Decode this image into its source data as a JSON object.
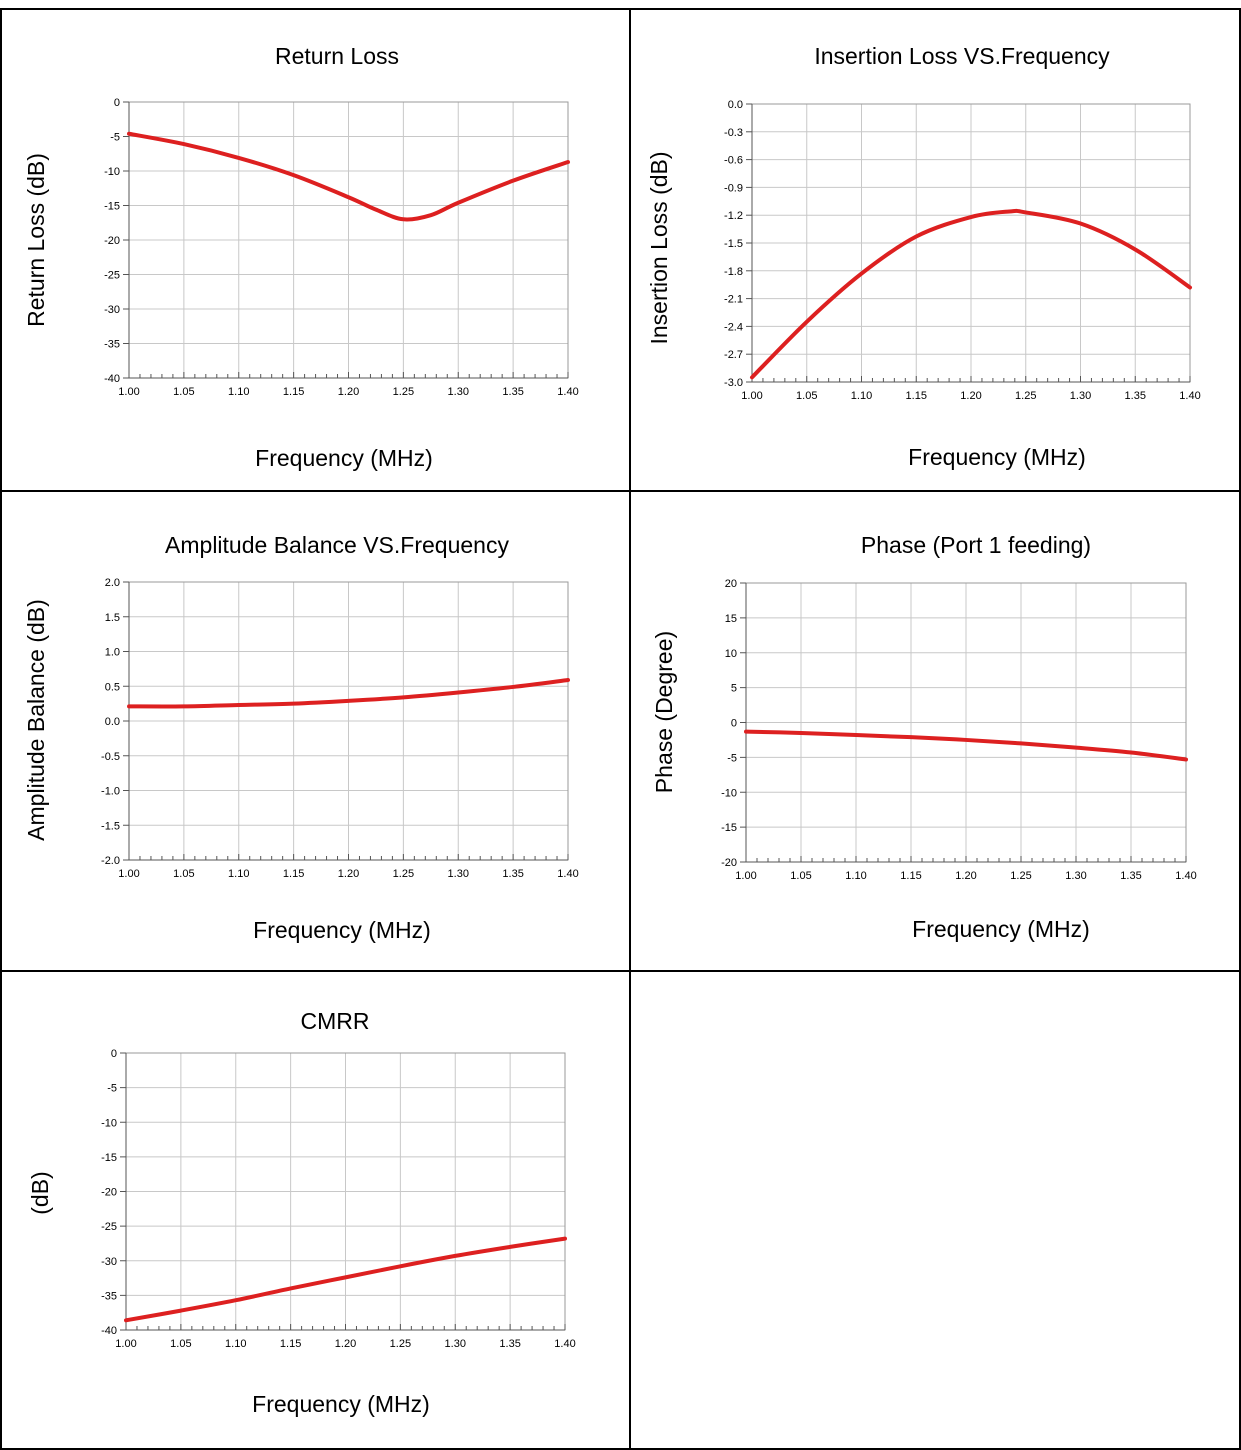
{
  "line_color": "#dd2020",
  "grid_color": "#c8c8c8",
  "charts": [
    {
      "id": "return-loss",
      "chart_data": {
        "type": "line",
        "title": "Return Loss",
        "xlabel": "Frequency (MHz)",
        "ylabel": "Return Loss (dB)",
        "xlim": [
          1.0,
          1.4
        ],
        "ylim": [
          -40,
          0
        ],
        "xticks": [
          "1.00",
          "1.05",
          "1.10",
          "1.15",
          "1.20",
          "1.25",
          "1.30",
          "1.35",
          "1.40"
        ],
        "yticks": [
          "0",
          "-5",
          "-10",
          "-15",
          "-20",
          "-25",
          "-30",
          "-35",
          "-40"
        ],
        "grid": true,
        "series": [
          {
            "x": [
              1.0,
              1.05,
              1.1,
              1.15,
              1.2,
              1.225,
              1.25,
              1.275,
              1.3,
              1.35,
              1.4
            ],
            "y": [
              -4.6,
              -6.1,
              -8.1,
              -10.6,
              -13.8,
              -15.6,
              -17.0,
              -16.4,
              -14.6,
              -11.4,
              -8.7
            ]
          }
        ]
      }
    },
    {
      "id": "insertion-loss",
      "chart_data": {
        "type": "line",
        "title": "Insertion Loss VS.Frequency",
        "xlabel": "Frequency (MHz)",
        "ylabel": "Insertion Loss (dB)",
        "xlim": [
          1.0,
          1.4
        ],
        "ylim": [
          -3.0,
          0.0
        ],
        "xticks": [
          "1.00",
          "1.05",
          "1.10",
          "1.15",
          "1.20",
          "1.25",
          "1.30",
          "1.35",
          "1.40"
        ],
        "yticks": [
          "0.0",
          "-0.3",
          "-0.6",
          "-0.9",
          "-1.2",
          "-1.5",
          "-1.8",
          "-2.1",
          "-2.4",
          "-2.7",
          "-3.0"
        ],
        "grid": true,
        "series": [
          {
            "x": [
              1.0,
              1.05,
              1.1,
              1.15,
              1.2,
              1.235,
              1.25,
              1.3,
              1.35,
              1.4
            ],
            "y": [
              -2.95,
              -2.35,
              -1.83,
              -1.43,
              -1.22,
              -1.16,
              -1.17,
              -1.29,
              -1.57,
              -1.98
            ]
          }
        ]
      }
    },
    {
      "id": "amplitude-balance",
      "chart_data": {
        "type": "line",
        "title": "Amplitude Balance VS.Frequency",
        "xlabel": "Frequency (MHz)",
        "ylabel": "Amplitude Balance (dB)",
        "xlim": [
          1.0,
          1.4
        ],
        "ylim": [
          -2.0,
          2.0
        ],
        "xticks": [
          "1.00",
          "1.05",
          "1.10",
          "1.15",
          "1.20",
          "1.25",
          "1.30",
          "1.35",
          "1.40"
        ],
        "yticks": [
          "2.0",
          "1.5",
          "1.0",
          "0.5",
          "0.0",
          "-0.5",
          "-1.0",
          "-1.5",
          "-2.0"
        ],
        "grid": true,
        "series": [
          {
            "x": [
              1.0,
              1.05,
              1.1,
              1.15,
              1.2,
              1.25,
              1.3,
              1.35,
              1.4
            ],
            "y": [
              0.21,
              0.21,
              0.23,
              0.25,
              0.29,
              0.34,
              0.41,
              0.49,
              0.59
            ]
          }
        ]
      }
    },
    {
      "id": "phase",
      "chart_data": {
        "type": "line",
        "title": "Phase (Port 1 feeding)",
        "xlabel": "Frequency (MHz)",
        "ylabel": "Phase (Degree)",
        "xlim": [
          1.0,
          1.4
        ],
        "ylim": [
          -20,
          20
        ],
        "xticks": [
          "1.00",
          "1.05",
          "1.10",
          "1.15",
          "1.20",
          "1.25",
          "1.30",
          "1.35",
          "1.40"
        ],
        "yticks": [
          "20",
          "15",
          "10",
          "5",
          "0",
          "-5",
          "-10",
          "-15",
          "-20"
        ],
        "grid": true,
        "series": [
          {
            "x": [
              1.0,
              1.05,
              1.1,
              1.15,
              1.2,
              1.25,
              1.3,
              1.35,
              1.4
            ],
            "y": [
              -1.3,
              -1.5,
              -1.8,
              -2.1,
              -2.5,
              -3.0,
              -3.6,
              -4.3,
              -5.3
            ]
          }
        ]
      }
    },
    {
      "id": "cmrr",
      "chart_data": {
        "type": "line",
        "title": "CMRR",
        "xlabel": "Frequency (MHz)",
        "ylabel": "(dB)",
        "xlim": [
          1.0,
          1.4
        ],
        "ylim": [
          -40,
          0
        ],
        "xticks": [
          "1.00",
          "1.05",
          "1.10",
          "1.15",
          "1.20",
          "1.25",
          "1.30",
          "1.35",
          "1.40"
        ],
        "yticks": [
          "0",
          "-5",
          "-10",
          "-15",
          "-20",
          "-25",
          "-30",
          "-35",
          "-40"
        ],
        "grid": true,
        "series": [
          {
            "x": [
              1.0,
              1.05,
              1.1,
              1.15,
              1.2,
              1.25,
              1.3,
              1.35,
              1.4
            ],
            "y": [
              -38.6,
              -37.2,
              -35.7,
              -34.0,
              -32.4,
              -30.8,
              -29.3,
              -28.0,
              -26.8
            ]
          }
        ]
      }
    }
  ]
}
